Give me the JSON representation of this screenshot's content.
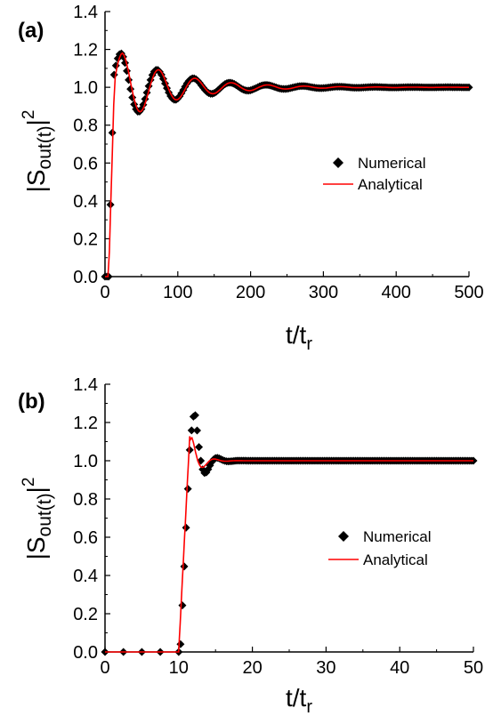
{
  "chart_data": [
    {
      "panel_label": "(a)",
      "type": "line",
      "xlabel": "t/t",
      "xlabel_sub": "r",
      "ylabel": "|S",
      "ylabel_sub": "out(t)",
      "ylabel_close": "|",
      "ylabel_sup": "2",
      "xlim": [
        0,
        500
      ],
      "ylim": [
        0,
        1.4
      ],
      "x_ticks": [
        "0",
        "100",
        "200",
        "300",
        "400",
        "500"
      ],
      "y_ticks": [
        "0.0",
        "0.2",
        "0.4",
        "0.6",
        "0.8",
        "1.0",
        "1.2",
        "1.4"
      ],
      "grid": false,
      "legend_position": "center-right",
      "series": [
        {
          "name": "Numerical",
          "marker": "diamond",
          "color": "#000000",
          "model": {
            "rise_start": 5,
            "rise_end": 12,
            "peak_t": 22,
            "amplitude": 0.18,
            "period": 50,
            "decay_time": 75,
            "plateau": 1.0
          },
          "x_range": [
            0,
            500
          ],
          "dt": 2.5
        },
        {
          "name": "Analytical",
          "marker": "line",
          "color": "#ff0000",
          "model": {
            "rise_start": 5,
            "rise_end": 13,
            "peak_t": 24,
            "amplitude": 0.18,
            "period": 50,
            "decay_time": 75,
            "plateau": 1.0
          },
          "x_range": [
            0,
            500
          ],
          "dt": 2
        }
      ]
    },
    {
      "panel_label": "(b)",
      "type": "line",
      "xlabel": "t/t",
      "xlabel_sub": "r",
      "ylabel": "|S",
      "ylabel_sub": "out(t)",
      "ylabel_close": "|",
      "ylabel_sup": "2",
      "xlim": [
        0,
        50
      ],
      "ylim": [
        0,
        1.4
      ],
      "x_ticks": [
        "0",
        "10",
        "20",
        "30",
        "40",
        "50"
      ],
      "y_ticks": [
        "0.0",
        "0.2",
        "0.4",
        "0.6",
        "0.8",
        "1.0",
        "1.2",
        "1.4"
      ],
      "grid": false,
      "legend_position": "center-right",
      "series": [
        {
          "name": "Numerical",
          "marker": "diamond",
          "color": "#000000",
          "model": {
            "rise_start": 10.2,
            "rise_end": 11.7,
            "peak_t": 12.2,
            "amplitude": 0.25,
            "period": 3.2,
            "decay_time": 1.1,
            "plateau": 1.0
          },
          "x_range": [
            0,
            50
          ],
          "dt": 0.25,
          "sparse_below": 10,
          "sparse_step": 2.5
        },
        {
          "name": "Analytical",
          "marker": "line",
          "color": "#ff0000",
          "model": {
            "rise_start": 10,
            "rise_end": 11.5,
            "peak_t": 11.8,
            "amplitude": 0.12,
            "period": 3.2,
            "decay_time": 1.2,
            "plateau": 1.0
          },
          "x_range": [
            0,
            50
          ],
          "dt": 0.1
        }
      ]
    }
  ]
}
